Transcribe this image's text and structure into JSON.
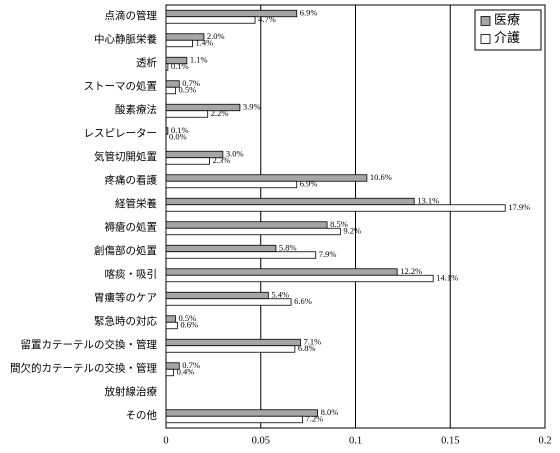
{
  "chart_data": {
    "type": "bar",
    "orientation": "horizontal",
    "categories": [
      "点滴の管理",
      "中心静脈栄養",
      "透析",
      "ストーマの処置",
      "酸素療法",
      "レスピレーター",
      "気管切開処置",
      "疼痛の看護",
      "経管栄養",
      "褥瘡の処置",
      "創傷部の処置",
      "喀痰・吸引",
      "胃瘻等のケア",
      "緊急時の対応",
      "留置カテーテルの交換・管理",
      "間欠的カテーテルの交換・管理",
      "放射線治療",
      "その他"
    ],
    "series": [
      {
        "name": "医療",
        "color": "#a6a6a6",
        "values": [
          0.069,
          0.02,
          0.011,
          0.007,
          0.039,
          0.001,
          0.03,
          0.106,
          0.131,
          0.085,
          0.058,
          0.122,
          0.054,
          0.005,
          0.071,
          0.007,
          null,
          0.08
        ],
        "value_labels": [
          "6.9%",
          "2.0%",
          "1.1%",
          "0.7%",
          "3.9%",
          "0.1%",
          "3.0%",
          "10.6%",
          "13.1%",
          "8.5%",
          "5.8%",
          "12.2%",
          "5.4%",
          "0.5%",
          "7.1%",
          "0.7%",
          null,
          "8.0%"
        ]
      },
      {
        "name": "介護",
        "color": "#ffffff",
        "values": [
          0.047,
          0.014,
          0.001,
          0.005,
          0.022,
          0.0,
          0.023,
          0.069,
          0.179,
          0.092,
          0.079,
          0.141,
          0.066,
          0.006,
          0.068,
          0.004,
          null,
          0.072
        ],
        "value_labels": [
          "4.7%",
          "1.4%",
          "0.1%",
          "0.5%",
          "2.2%",
          "0.0%",
          "2.3%",
          "6.9%",
          "17.9%",
          "9.2%",
          "7.9%",
          "14.1%",
          "6.6%",
          "0.6%",
          "6.8%",
          "0.4%",
          null,
          "7.2%"
        ]
      }
    ],
    "xlim": [
      0,
      0.2
    ],
    "xticks": [
      0,
      0.05,
      0.1,
      0.15,
      0.2
    ],
    "grid": true,
    "legend": "top-right"
  }
}
